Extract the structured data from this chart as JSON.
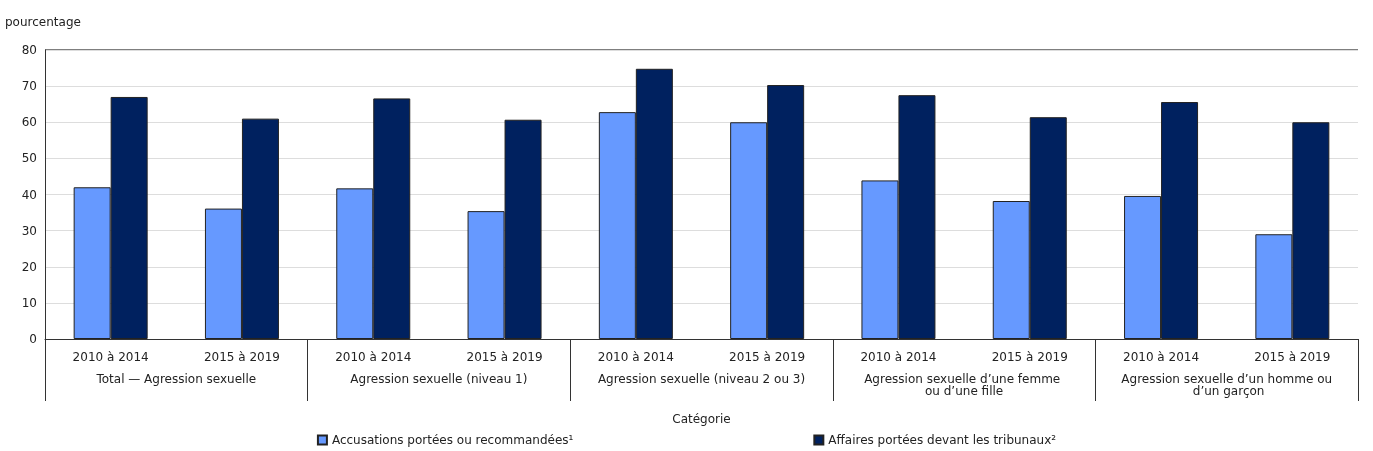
{
  "chart_data": {
    "type": "bar",
    "ylabel": "pourcentage",
    "xlabel": "Catégorie",
    "categories": [
      "2010 à 2014",
      "2015 à 2019",
      "2010 à 2014",
      "2015 à 2019",
      "2010 à 2014",
      "2015 à 2019",
      "2010 à 2014",
      "2015 à 2019",
      "2010 à 2014",
      "2015 à 2019"
    ],
    "annotations": [
      "Total — Agression sexuelle",
      "Agression sexuelle (niveau 1)",
      "Agression sexuelle (niveau 2 ou 3)",
      "Agression sexuelle d’une femme ou d’une fille",
      "Agression sexuelle d’un homme ou d’un garçon"
    ],
    "series": [
      {
        "name": "Accusations portées ou recommandées¹",
        "color": "#6699ff",
        "values": [
          42.0,
          36.1,
          41.7,
          35.4,
          62.8,
          60.0,
          43.9,
          38.2,
          39.6,
          29.0
        ]
      },
      {
        "name": "Affaires portées devant les tribunaux²",
        "color": "#00215f",
        "values": [
          67.0,
          61.0,
          66.6,
          60.7,
          74.8,
          70.3,
          67.5,
          61.4,
          65.6,
          60.0
        ]
      }
    ],
    "ylim": [
      0,
      80
    ],
    "yticks": [
      0,
      10,
      20,
      30,
      40,
      50,
      60,
      70,
      80
    ],
    "grid": "y",
    "legend": "bottom"
  }
}
